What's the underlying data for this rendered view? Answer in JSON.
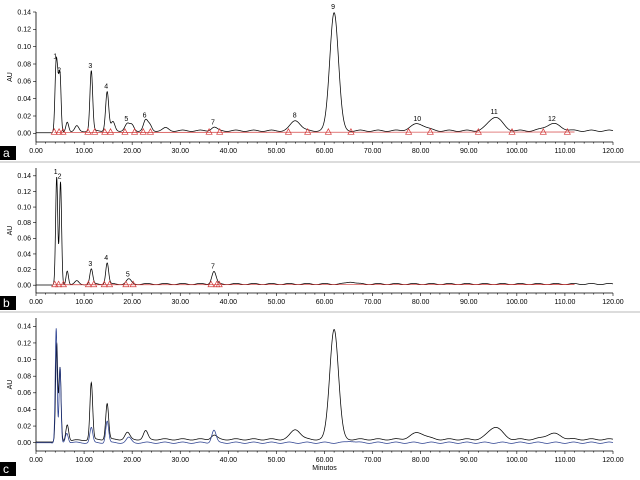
{
  "chart_data": [
    {
      "type": "line",
      "panel_letter": "a",
      "ylabel": "AU",
      "xlim": [
        0,
        120
      ],
      "ylim": [
        -0.01,
        0.14
      ],
      "x_ticks": [
        "0.00",
        "10.00",
        "20.00",
        "30.00",
        "40.00",
        "50.00",
        "60.00",
        "70.00",
        "80.00",
        "90.00",
        "100.00",
        "110.00",
        "120.00"
      ],
      "y_ticks": [
        "0.00",
        "0.02",
        "0.04",
        "0.06",
        "0.08",
        "0.10",
        "0.12",
        "0.14"
      ],
      "peaks": [
        {
          "label": "1",
          "rt": 4.2,
          "height": 0.08,
          "width": 0.25
        },
        {
          "label": "2",
          "rt": 5.0,
          "height": 0.064,
          "width": 0.22
        },
        {
          "label": "3",
          "rt": 11.5,
          "height": 0.069,
          "width": 0.28
        },
        {
          "label": "4",
          "rt": 14.8,
          "height": 0.045,
          "width": 0.32
        },
        {
          "label": "5",
          "rt": 19.0,
          "height": 0.008,
          "width": 0.5
        },
        {
          "label": "6",
          "rt": 22.8,
          "height": 0.012,
          "width": 0.45
        },
        {
          "label": "7",
          "rt": 37.0,
          "height": 0.004,
          "width": 0.6
        },
        {
          "label": "8",
          "rt": 54.0,
          "height": 0.012,
          "width": 1.0
        },
        {
          "label": "9",
          "rt": 62.0,
          "height": 0.137,
          "width": 0.9
        },
        {
          "label": "10",
          "rt": 79.5,
          "height": 0.008,
          "width": 1.5
        },
        {
          "label": "11",
          "rt": 95.5,
          "height": 0.016,
          "width": 1.4
        },
        {
          "label": "12",
          "rt": 107.5,
          "height": 0.008,
          "width": 1.6
        }
      ],
      "unlabeled_peaks": [
        {
          "rt": 4.6,
          "height": 0.035,
          "width": 0.2
        },
        {
          "rt": 6.5,
          "height": 0.012,
          "width": 0.3
        },
        {
          "rt": 8.5,
          "height": 0.006,
          "width": 0.4
        },
        {
          "rt": 16.0,
          "height": 0.01,
          "width": 0.4
        },
        {
          "rt": 20.0,
          "height": 0.006,
          "width": 0.4
        },
        {
          "rt": 23.7,
          "height": 0.006,
          "width": 0.4
        },
        {
          "rt": 27.0,
          "height": 0.003,
          "width": 0.6
        }
      ],
      "baseline_drift": 0.003,
      "marker_times": [
        3.8,
        4.8,
        5.6,
        10.8,
        12.2,
        14.3,
        15.5,
        18.5,
        20.5,
        22.3,
        23.8,
        36.0,
        38.2,
        52.5,
        56.5,
        60.8,
        65.5,
        77.5,
        82.0,
        92.0,
        99.0,
        105.5,
        110.5
      ]
    },
    {
      "type": "line",
      "panel_letter": "b",
      "ylabel": "AU",
      "xlim": [
        0,
        120
      ],
      "ylim": [
        -0.01,
        0.15
      ],
      "x_ticks": [
        "0.00",
        "10.00",
        "20.00",
        "30.00",
        "40.00",
        "50.00",
        "60.00",
        "70.00",
        "80.00",
        "90.00",
        "100.00",
        "110.00",
        "120.00"
      ],
      "y_ticks": [
        "0.00",
        "0.02",
        "0.04",
        "0.06",
        "0.08",
        "0.10",
        "0.12",
        "0.14"
      ],
      "peaks": [
        {
          "label": "1",
          "rt": 4.3,
          "height": 0.137,
          "width": 0.22
        },
        {
          "label": "2",
          "rt": 5.1,
          "height": 0.131,
          "width": 0.22
        },
        {
          "label": "3",
          "rt": 11.5,
          "height": 0.019,
          "width": 0.3
        },
        {
          "label": "4",
          "rt": 14.8,
          "height": 0.027,
          "width": 0.3
        },
        {
          "label": "5",
          "rt": 19.3,
          "height": 0.006,
          "width": 0.5
        },
        {
          "label": "7",
          "rt": 37.0,
          "height": 0.016,
          "width": 0.45
        }
      ],
      "unlabeled_peaks": [
        {
          "rt": 6.5,
          "height": 0.018,
          "width": 0.25
        },
        {
          "rt": 8.5,
          "height": 0.004,
          "width": 0.4
        },
        {
          "rt": 65.5,
          "height": 0.003,
          "width": 0.8
        }
      ],
      "baseline_drift": 0.0015,
      "marker_times": [
        3.9,
        4.7,
        5.7,
        10.9,
        12.0,
        14.2,
        15.3,
        18.7,
        20.2,
        36.4,
        37.6,
        38.1
      ]
    },
    {
      "type": "line",
      "panel_letter": "c",
      "ylabel": "AU",
      "xlabel": "Minutos",
      "xlim": [
        0,
        120
      ],
      "ylim": [
        -0.01,
        0.15
      ],
      "x_ticks": [
        "0.00",
        "10.00",
        "20.00",
        "30.00",
        "40.00",
        "50.00",
        "60.00",
        "70.00",
        "80.00",
        "90.00",
        "100.00",
        "110.00",
        "120.00"
      ],
      "y_ticks": [
        "0.00",
        "0.02",
        "0.04",
        "0.06",
        "0.08",
        "0.10",
        "0.12",
        "0.14"
      ],
      "series": [
        {
          "color": "#000000",
          "baseline_drift": 0.004,
          "peaks": [
            {
              "rt": 4.3,
              "height": 0.118,
              "width": 0.22
            },
            {
              "rt": 5.0,
              "height": 0.088,
              "width": 0.22
            },
            {
              "rt": 6.5,
              "height": 0.02,
              "width": 0.3
            },
            {
              "rt": 11.5,
              "height": 0.068,
              "width": 0.28
            },
            {
              "rt": 14.8,
              "height": 0.043,
              "width": 0.3
            },
            {
              "rt": 19.0,
              "height": 0.008,
              "width": 0.5
            },
            {
              "rt": 22.8,
              "height": 0.01,
              "width": 0.45
            },
            {
              "rt": 37.0,
              "height": 0.005,
              "width": 0.6
            },
            {
              "rt": 54.0,
              "height": 0.012,
              "width": 1.0
            },
            {
              "rt": 62.0,
              "height": 0.133,
              "width": 0.9
            },
            {
              "rt": 79.5,
              "height": 0.008,
              "width": 1.5
            },
            {
              "rt": 95.5,
              "height": 0.015,
              "width": 1.4
            },
            {
              "rt": 107.5,
              "height": 0.007,
              "width": 1.6
            }
          ]
        },
        {
          "color": "#2a3f8f",
          "baseline_drift": 0.0,
          "peaks": [
            {
              "rt": 4.2,
              "height": 0.137,
              "width": 0.2
            },
            {
              "rt": 5.0,
              "height": 0.09,
              "width": 0.2
            },
            {
              "rt": 6.4,
              "height": 0.012,
              "width": 0.3
            },
            {
              "rt": 11.5,
              "height": 0.018,
              "width": 0.3
            },
            {
              "rt": 14.8,
              "height": 0.026,
              "width": 0.3
            },
            {
              "rt": 19.3,
              "height": 0.006,
              "width": 0.5
            },
            {
              "rt": 37.0,
              "height": 0.015,
              "width": 0.45
            },
            {
              "rt": 65.5,
              "height": 0.002,
              "width": 0.8
            }
          ]
        }
      ]
    }
  ]
}
